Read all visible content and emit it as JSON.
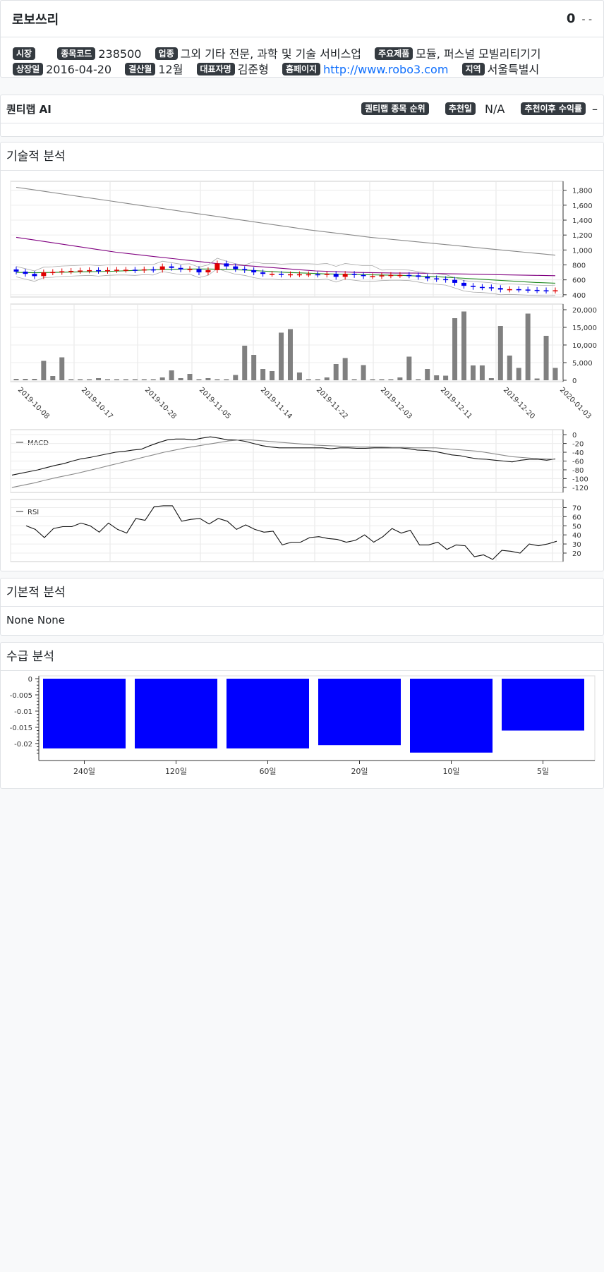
{
  "header": {
    "company_name": "로보쓰리",
    "price": "0",
    "change": "- -"
  },
  "info": {
    "row1": [
      {
        "label": "시장",
        "value": ""
      },
      {
        "label": "종목코드",
        "value": "238500"
      },
      {
        "label": "업종",
        "value": "그외 기타 전문, 과학 및 기술 서비스업"
      },
      {
        "label": "주요제품",
        "value": "모듈, 퍼스널 모빌리티기기"
      }
    ],
    "row2": [
      {
        "label": "상장일",
        "value": "2016-04-20"
      },
      {
        "label": "결산월",
        "value": "12월"
      },
      {
        "label": "대표자명",
        "value": "김준형"
      },
      {
        "label": "홈페이지",
        "value": "http://www.robo3.com"
      },
      {
        "label": "지역",
        "value": "서울특별시"
      }
    ]
  },
  "ai": {
    "title": "퀀티랩 AI",
    "rank_label": "퀀티랩 종목 순위",
    "rec_date_label": "추천일",
    "rec_date_value": "N/A",
    "return_label": "추천이후 수익률",
    "return_value": "–"
  },
  "technical": {
    "title": "기술적 분석",
    "macd_legend": "MACD",
    "rsi_legend": "RSI"
  },
  "fundamental": {
    "title": "기본적 분석",
    "text": "None None"
  },
  "supply": {
    "title": "수급 분석"
  },
  "colors": {
    "up": "#e00000",
    "down": "#0000ee",
    "bar": "#0000ff",
    "volume": "#808080"
  },
  "chart_data": [
    {
      "type": "candlestick",
      "x_ticks": [
        "2019-10-08",
        "2019-10-17",
        "2019-10-28",
        "2019-11-05",
        "2019-11-14",
        "2019-11-22",
        "2019-12-03",
        "2019-12-11",
        "2019-12-20",
        "2020-01-03"
      ],
      "y_ticks": [
        "400",
        "600",
        "800",
        "1,000",
        "1,200",
        "1,400",
        "1,600",
        "1,800"
      ],
      "ylim": [
        370,
        1920
      ],
      "close": [
        710,
        680,
        650,
        700,
        705,
        715,
        720,
        725,
        730,
        720,
        730,
        735,
        735,
        730,
        740,
        735,
        780,
        760,
        740,
        745,
        700,
        730,
        820,
        780,
        745,
        730,
        700,
        680,
        680,
        670,
        675,
        675,
        675,
        670,
        680,
        640,
        680,
        665,
        650,
        650,
        660,
        665,
        665,
        660,
        640,
        620,
        610,
        600,
        560,
        520,
        505,
        500,
        490,
        470,
        475,
        470,
        465,
        460,
        455,
        460
      ],
      "series": [
        {
          "name": "ma_long",
          "values": [
            1840,
            1810,
            1780,
            1750,
            1720,
            1690,
            1660,
            1630,
            1600,
            1570,
            1540,
            1510,
            1480,
            1450,
            1420,
            1390,
            1360,
            1330,
            1300,
            1270,
            1245,
            1220,
            1195,
            1170,
            1150,
            1130,
            1110,
            1090,
            1070,
            1050,
            1030,
            1010,
            990,
            970,
            950,
            930
          ]
        },
        {
          "name": "ma_mid",
          "values": [
            1170,
            1130,
            1090,
            1050,
            1010,
            970,
            940,
            910,
            880,
            850,
            820,
            800,
            780,
            760,
            740,
            720,
            710,
            700,
            695,
            690,
            690,
            685,
            680,
            675,
            670,
            665,
            660,
            655
          ]
        },
        {
          "name": "ma_short",
          "values": [
            700,
            695,
            700,
            705,
            710,
            715,
            725,
            735,
            740,
            745,
            745,
            740,
            730,
            715,
            700,
            690,
            680,
            675,
            670,
            665,
            660,
            650,
            640,
            625,
            610,
            595,
            580,
            565,
            555
          ]
        }
      ]
    },
    {
      "type": "bar",
      "name": "volume",
      "y_ticks": [
        "0",
        "5,000",
        "10,000",
        "15,000",
        "20,000"
      ],
      "ylim": [
        0,
        20000
      ],
      "values": [
        400,
        400,
        400,
        5500,
        1200,
        6500,
        300,
        300,
        300,
        600,
        300,
        300,
        300,
        300,
        300,
        300,
        800,
        2800,
        600,
        1800,
        300,
        600,
        300,
        300,
        1500,
        9800,
        7200,
        3200,
        2600,
        13500,
        14500,
        2200,
        300,
        300,
        800,
        4600,
        6300,
        300,
        4300,
        300,
        300,
        300,
        800,
        6700,
        300,
        3200,
        1400,
        1300,
        17600,
        19500,
        4200,
        4200,
        600,
        15400,
        7000,
        3500,
        18900,
        500,
        12600,
        3500
      ]
    },
    {
      "type": "line",
      "name": "MACD",
      "y_ticks": [
        "0",
        "-20",
        "-40",
        "-60",
        "-80",
        "-100",
        "-120"
      ],
      "ylim": [
        -125,
        5
      ],
      "series": [
        {
          "name": "MACD",
          "values": [
            -92,
            -88,
            -84,
            -80,
            -75,
            -70,
            -66,
            -60,
            -55,
            -52,
            -48,
            -44,
            -40,
            -38,
            -35,
            -33,
            -25,
            -18,
            -12,
            -10,
            -10,
            -12,
            -8,
            -5,
            -8,
            -12,
            -12,
            -15,
            -20,
            -25,
            -28,
            -30,
            -30,
            -30,
            -30,
            -30,
            -30,
            -32,
            -30,
            -30,
            -31,
            -31,
            -30,
            -30,
            -30,
            -30,
            -32,
            -35,
            -36,
            -38,
            -42,
            -46,
            -48,
            -52,
            -55,
            -56,
            -58,
            -60,
            -62,
            -58,
            -56,
            -56,
            -58,
            -55
          ]
        },
        {
          "name": "signal",
          "values": [
            -120,
            -115,
            -110,
            -104,
            -98,
            -93,
            -88,
            -82,
            -76,
            -70,
            -64,
            -58,
            -52,
            -46,
            -40,
            -35,
            -30,
            -26,
            -22,
            -18,
            -14,
            -12,
            -12,
            -14,
            -16,
            -18,
            -20,
            -22,
            -24,
            -25,
            -26,
            -27,
            -28,
            -28,
            -28,
            -29,
            -29,
            -30,
            -30,
            -30,
            -32,
            -34,
            -36,
            -38,
            -42,
            -46,
            -50,
            -52,
            -54,
            -55,
            -56
          ]
        }
      ]
    },
    {
      "type": "line",
      "name": "RSI",
      "y_ticks": [
        "20",
        "30",
        "40",
        "50",
        "60",
        "70"
      ],
      "ylim": [
        13,
        75
      ],
      "values": [
        50,
        46,
        37,
        47,
        49,
        49,
        53,
        50,
        43,
        53,
        46,
        42,
        58,
        56,
        71,
        72,
        72,
        55,
        57,
        58,
        52,
        58,
        55,
        46,
        51,
        46,
        43,
        44,
        29,
        32,
        32,
        37,
        38,
        36,
        35,
        32,
        34,
        40,
        32,
        38,
        47,
        42,
        45,
        29,
        29,
        32,
        24,
        29,
        28,
        16,
        18,
        13,
        23,
        22,
        20,
        30,
        28,
        30,
        33
      ]
    },
    {
      "type": "bar",
      "name": "supply",
      "categories": [
        "240일",
        "120일",
        "60일",
        "20일",
        "10일",
        "5일"
      ],
      "values": [
        -0.0215,
        -0.0215,
        -0.0215,
        -0.0205,
        -0.0228,
        -0.016
      ],
      "y_ticks": [
        "0",
        "-0.005",
        "-0.01",
        "-0.015",
        "-0.02"
      ],
      "ylim": [
        -0.0235,
        0.0005
      ]
    }
  ]
}
